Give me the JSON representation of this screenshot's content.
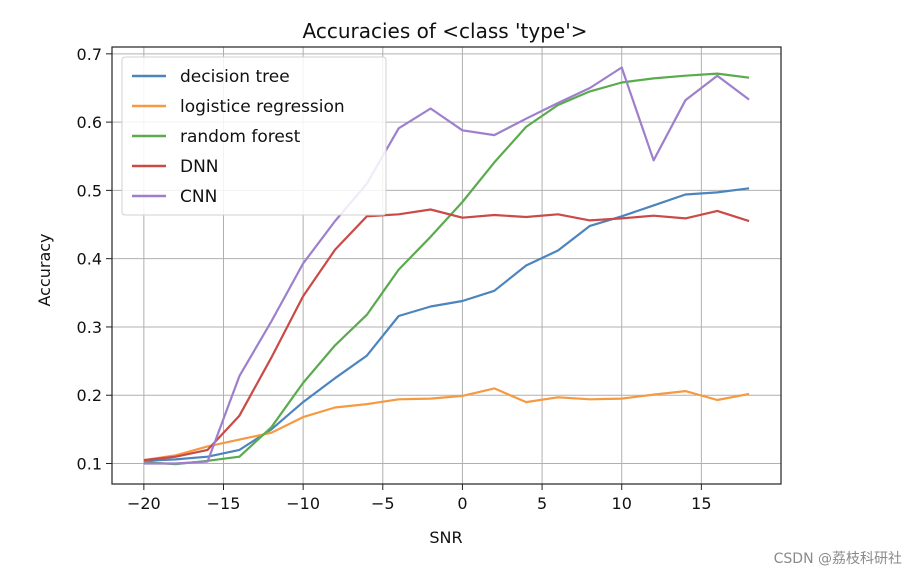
{
  "chart_data": {
    "type": "line",
    "title": "Accuracies of <class 'type'>",
    "xlabel": "SNR",
    "ylabel": "Accuracy",
    "x": [
      -20,
      -18,
      -16,
      -14,
      -12,
      -10,
      -8,
      -6,
      -4,
      -2,
      0,
      2,
      4,
      6,
      8,
      10,
      12,
      14,
      16,
      18
    ],
    "xlim": [
      -22,
      20
    ],
    "ylim": [
      0.07,
      0.71
    ],
    "xticks": [
      -20,
      -15,
      -10,
      -5,
      0,
      5,
      10,
      15
    ],
    "xtick_labels": [
      "−20",
      "−15",
      "−10",
      "−5",
      "0",
      "5",
      "10",
      "15"
    ],
    "yticks": [
      0.1,
      0.2,
      0.3,
      0.4,
      0.5,
      0.6,
      0.7
    ],
    "ytick_labels": [
      "0.1",
      "0.2",
      "0.3",
      "0.4",
      "0.5",
      "0.6",
      "0.7"
    ],
    "grid": true,
    "legend_position": "upper-left",
    "series": [
      {
        "name": "decision tree",
        "color": "#4c84bd",
        "values": [
          0.104,
          0.106,
          0.11,
          0.12,
          0.15,
          0.19,
          0.225,
          0.258,
          0.316,
          0.33,
          0.338,
          0.353,
          0.39,
          0.412,
          0.448,
          0.462,
          0.478,
          0.494,
          0.497,
          0.503
        ]
      },
      {
        "name": "logistice regression",
        "color": "#f59a42",
        "values": [
          0.105,
          0.112,
          0.125,
          0.135,
          0.145,
          0.168,
          0.182,
          0.187,
          0.194,
          0.195,
          0.199,
          0.21,
          0.19,
          0.197,
          0.194,
          0.195,
          0.201,
          0.206,
          0.193,
          0.202
        ]
      },
      {
        "name": "random forest",
        "color": "#5aab4d",
        "values": [
          0.102,
          0.099,
          0.104,
          0.11,
          0.153,
          0.218,
          0.273,
          0.318,
          0.384,
          0.432,
          0.483,
          0.541,
          0.593,
          0.625,
          0.645,
          0.658,
          0.664,
          0.668,
          0.671,
          0.665
        ]
      },
      {
        "name": "DNN",
        "color": "#c94a46",
        "values": [
          0.105,
          0.11,
          0.12,
          0.17,
          0.255,
          0.345,
          0.413,
          0.462,
          0.465,
          0.472,
          0.46,
          0.464,
          0.461,
          0.465,
          0.456,
          0.459,
          0.463,
          0.459,
          0.47,
          0.455
        ]
      },
      {
        "name": "CNN",
        "color": "#9d7fcb",
        "values": [
          0.1,
          0.1,
          0.103,
          0.228,
          0.308,
          0.393,
          0.455,
          0.51,
          0.591,
          0.62,
          0.588,
          0.581,
          0.605,
          0.628,
          0.65,
          0.68,
          0.544,
          0.632,
          0.668,
          0.633
        ]
      }
    ]
  },
  "watermark": "CSDN @荔枝科研社"
}
